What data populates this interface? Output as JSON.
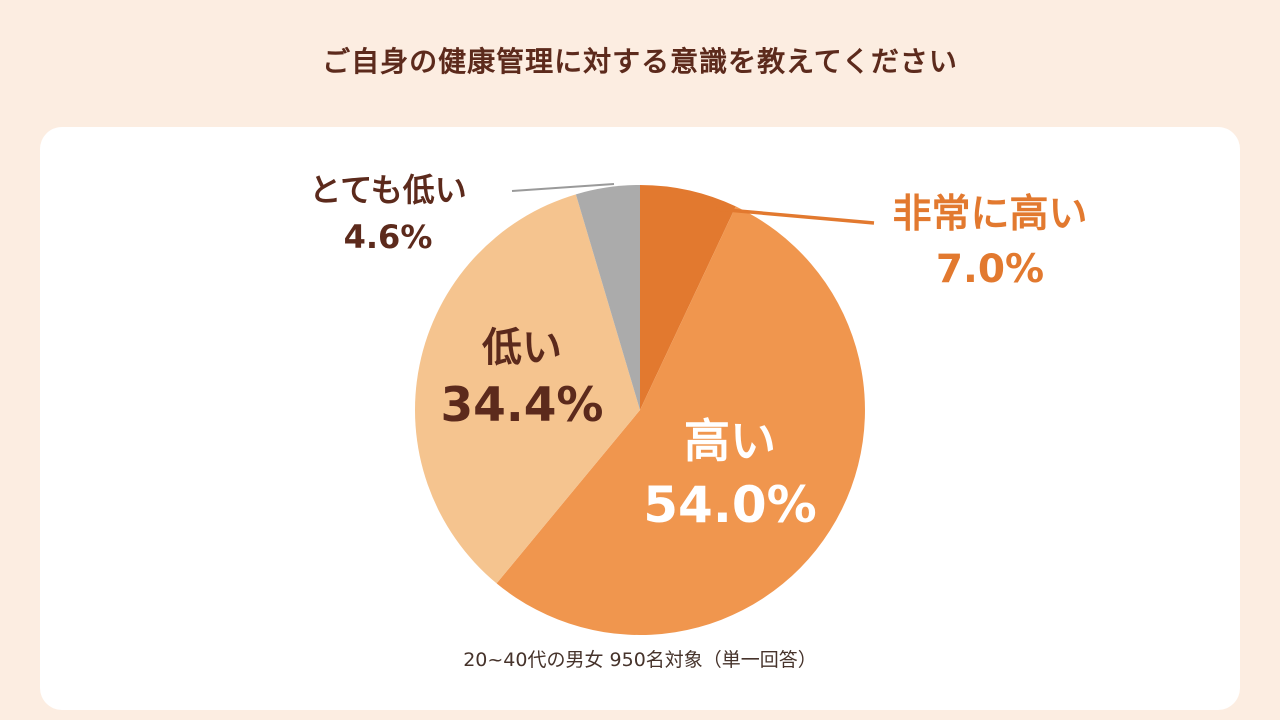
{
  "colors": {
    "page_background": "#FCEDE1",
    "card_background": "#FFFFFF",
    "title_text": "#5C2A1C",
    "highlight_orange": "#E2792F",
    "leader_gray": "#9A9A9A"
  },
  "chart_data": {
    "type": "pie",
    "title": "ご自身の健康管理に対する意識を教えてください",
    "note": "20~40代の男女 950名対象（単一回答）",
    "start_angle_deg": 0,
    "direction": "clockwise",
    "legend_position": "callout-labels",
    "segments": [
      {
        "label": "非常に高い",
        "value": 7.0,
        "value_label": "7.0%",
        "color": "#E2792F",
        "label_color": "#E2792F"
      },
      {
        "label": "高い",
        "value": 54.0,
        "value_label": "54.0%",
        "color": "#F0964E",
        "label_color": "#FFFFFF"
      },
      {
        "label": "低い",
        "value": 34.4,
        "value_label": "34.4%",
        "color": "#F5C48F",
        "label_color": "#5C2A1C"
      },
      {
        "label": "とても低い",
        "value": 4.6,
        "value_label": "4.6%",
        "color": "#ABABAB",
        "label_color": "#5C2A1C"
      }
    ]
  }
}
